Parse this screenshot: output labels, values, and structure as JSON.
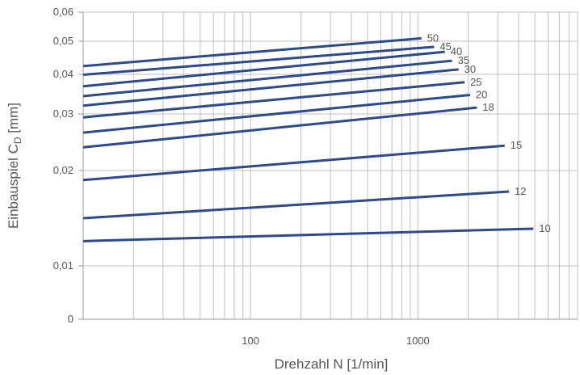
{
  "chart_data": {
    "type": "line",
    "xlabel": "Drehzahl N [1/min]",
    "ylabel_main": "Einbauspiel C",
    "ylabel_sub": "D",
    "ylabel_unit": " [mm]",
    "x_scale": "log",
    "x_ticks": [
      {
        "value": 100,
        "label": "100"
      },
      {
        "value": 1000,
        "label": "1000"
      }
    ],
    "x_range": [
      10,
      9000
    ],
    "y_ticks": [
      {
        "value": 0,
        "label": "0"
      },
      {
        "value": 0.01,
        "label": "0,01"
      },
      {
        "value": 0.02,
        "label": "0,02"
      },
      {
        "value": 0.03,
        "label": "0,03"
      },
      {
        "value": 0.04,
        "label": "0,04"
      },
      {
        "value": 0.05,
        "label": "0,05"
      },
      {
        "value": 0.06,
        "label": "0,06"
      }
    ],
    "grid": true,
    "line_color": "#2e4a8c",
    "grid_color": "#c0c0c0",
    "series": [
      {
        "name": "50",
        "x": [
          10,
          1050
        ],
        "y": [
          0.0425,
          0.051
        ]
      },
      {
        "name": "45",
        "x": [
          10,
          1250
        ],
        "y": [
          0.0399,
          0.0483
        ]
      },
      {
        "name": "40",
        "x": [
          10,
          1450
        ],
        "y": [
          0.037,
          0.0468
        ]
      },
      {
        "name": "35",
        "x": [
          10,
          1600
        ],
        "y": [
          0.0345,
          0.0441
        ]
      },
      {
        "name": "30",
        "x": [
          10,
          1750
        ],
        "y": [
          0.0321,
          0.0415
        ]
      },
      {
        "name": "25",
        "x": [
          10,
          1900
        ],
        "y": [
          0.0294,
          0.038
        ]
      },
      {
        "name": "20",
        "x": [
          10,
          2050
        ],
        "y": [
          0.0267,
          0.0348
        ]
      },
      {
        "name": "18",
        "x": [
          10,
          2250
        ],
        "y": [
          0.0241,
          0.0316
        ]
      },
      {
        "name": "15",
        "x": [
          10,
          3300
        ],
        "y": [
          0.019,
          0.0244
        ]
      },
      {
        "name": "12",
        "x": [
          10,
          3500
        ],
        "y": [
          0.015,
          0.0178
        ]
      },
      {
        "name": "10",
        "x": [
          10,
          4900
        ],
        "y": [
          0.0126,
          0.0139
        ]
      }
    ]
  }
}
